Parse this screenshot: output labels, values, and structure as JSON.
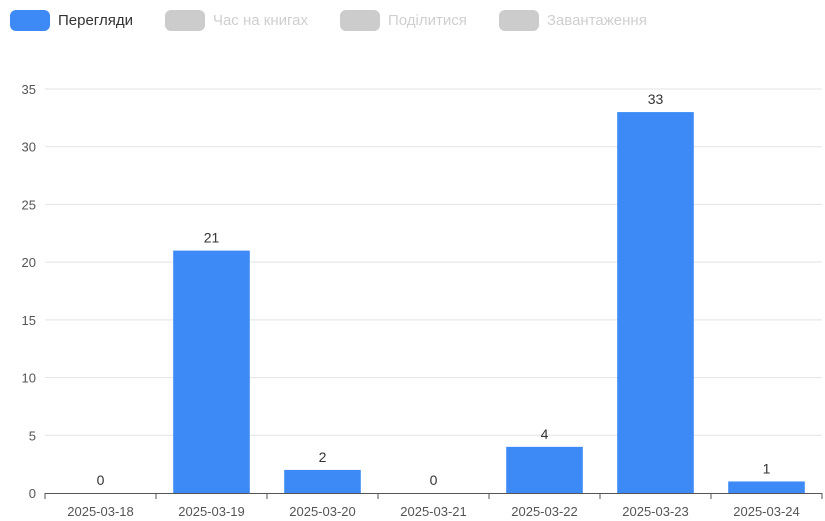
{
  "legend": {
    "items": [
      {
        "label": "Перегляди",
        "color": "#3d8af7",
        "active": true
      },
      {
        "label": "Час на книгах",
        "color": "#cccccc",
        "active": false
      },
      {
        "label": "Поділитися",
        "color": "#cccccc",
        "active": false
      },
      {
        "label": "Завантаження",
        "color": "#cccccc",
        "active": false
      }
    ]
  },
  "chart_data": {
    "type": "bar",
    "categories": [
      "2025-03-18",
      "2025-03-19",
      "2025-03-20",
      "2025-03-21",
      "2025-03-22",
      "2025-03-23",
      "2025-03-24"
    ],
    "series": [
      {
        "name": "Перегляди",
        "values": [
          0,
          21,
          2,
          0,
          4,
          33,
          1
        ],
        "color": "#3d8af7"
      }
    ],
    "ylim": [
      0,
      35
    ],
    "yticks": [
      0,
      5,
      10,
      15,
      20,
      25,
      30,
      35
    ],
    "grid": true,
    "legend_position": "top-left",
    "data_labels": true
  }
}
